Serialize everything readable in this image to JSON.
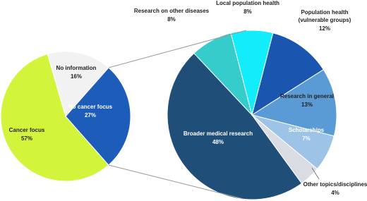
{
  "chart_data": [
    {
      "type": "pie",
      "categories": [
        "Cancer focus",
        "No information",
        "No cancer focus"
      ],
      "values": [
        57,
        16,
        27
      ],
      "value_labels": [
        "57%",
        "16%",
        "27%"
      ],
      "colors": [
        "#d2f53c",
        "#f2f2f2",
        "#1e5cba"
      ]
    },
    {
      "type": "pie",
      "categories": [
        "Broader medical research",
        "Research on other diseases",
        "Local population health",
        "Population health (vulnerable groups)",
        "Research in general",
        "Scholarships",
        "Other topics/disciplines"
      ],
      "values": [
        48,
        8,
        8,
        12,
        13,
        7,
        4
      ],
      "value_labels": [
        "48%",
        "8%",
        "8%",
        "12%",
        "13%",
        "7%",
        "4%"
      ],
      "colors": [
        "#1f4e79",
        "#36cccc",
        "#12ecfb",
        "#1a56b0",
        "#5b9bd5",
        "#9dc3e6",
        "#d9dde3"
      ]
    }
  ]
}
